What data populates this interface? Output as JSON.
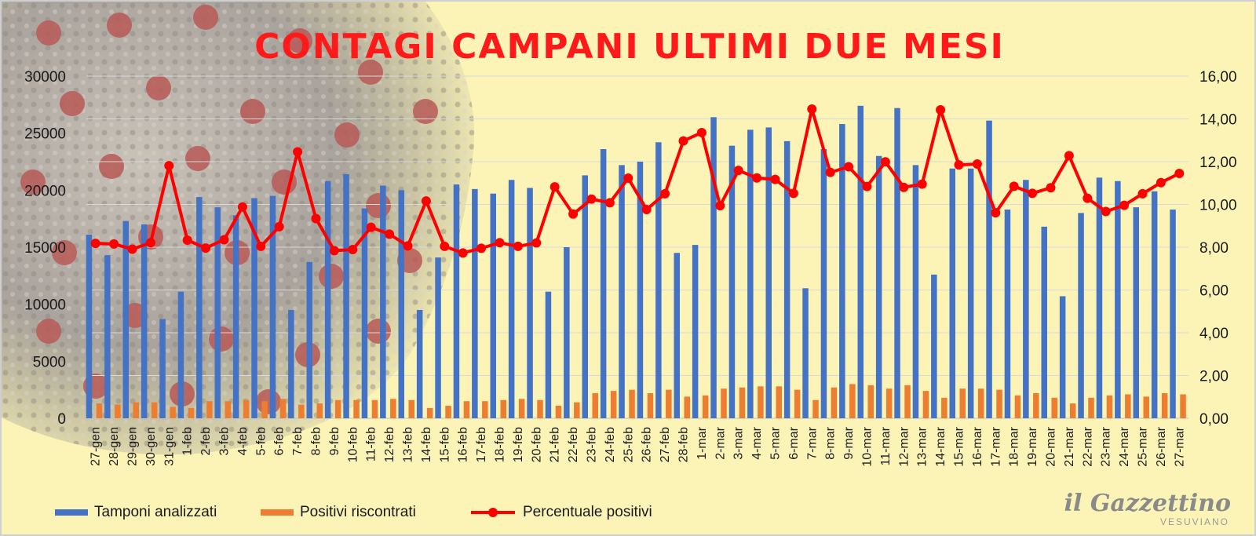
{
  "title": "CONTAGI CAMPANI ULTIMI DUE MESI",
  "legend": {
    "tamponi": "Tamponi analizzati",
    "positivi": "Positivi riscontrati",
    "percentuale": "Percentuale positivi"
  },
  "logo": {
    "name": "il Gazzettino",
    "sub": "VESUVIANO"
  },
  "colors": {
    "tamponi": "#4472c4",
    "positivi": "#ed7d31",
    "percentuale": "#ff0000",
    "title": "#ff1a1a",
    "background": "#fbf4b6"
  },
  "chart_data": {
    "type": "bar",
    "title": "CONTAGI CAMPANI ULTIMI DUE MESI",
    "categories": [
      "27-gen",
      "28-gen",
      "29-gen",
      "30-gen",
      "31-gen",
      "1-feb",
      "2-feb",
      "3-feb",
      "4-feb",
      "5-feb",
      "6-feb",
      "7-feb",
      "8-feb",
      "9-feb",
      "10-feb",
      "11-feb",
      "12-feb",
      "13-feb",
      "14-feb",
      "15-feb",
      "16-feb",
      "17-feb",
      "18-feb",
      "19-feb",
      "20-feb",
      "21-feb",
      "22-feb",
      "23-feb",
      "24-feb",
      "25-feb",
      "26-feb",
      "27-feb",
      "28-feb",
      "1-mar",
      "2-mar",
      "3-mar",
      "4-mar",
      "5-mar",
      "6-mar",
      "7-mar",
      "8-mar",
      "9-mar",
      "10-mar",
      "11-mar",
      "12-mar",
      "13-mar",
      "14-mar",
      "15-mar",
      "16-mar",
      "17-mar",
      "18-mar",
      "19-mar",
      "20-mar",
      "21-mar",
      "22-mar",
      "23-mar",
      "24-mar",
      "25-mar",
      "26-mar",
      "27-mar"
    ],
    "series": [
      {
        "name": "Tamponi analizzati",
        "type": "bar",
        "axis": "left",
        "values": [
          16100,
          14300,
          17300,
          17000,
          8700,
          11100,
          19400,
          18500,
          17800,
          19300,
          19500,
          9500,
          13700,
          20800,
          21400,
          18400,
          20400,
          20000,
          9500,
          14100,
          20500,
          20100,
          19700,
          20900,
          20200,
          11100,
          15000,
          21300,
          23600,
          22200,
          22500,
          24200,
          14500,
          15200,
          26400,
          23900,
          25300,
          25500,
          24300,
          11400,
          23600,
          25800,
          27400,
          23000,
          27200,
          22200,
          12600,
          21900,
          21900,
          26100,
          18300,
          20900,
          16800,
          10700,
          18000,
          21100,
          20800,
          18500,
          19900,
          18300
        ]
      },
      {
        "name": "Positivi riscontrati",
        "type": "bar",
        "axis": "left",
        "values": [
          1300,
          1200,
          1400,
          1400,
          1000,
          900,
          1500,
          1500,
          1600,
          1500,
          1700,
          1200,
          1300,
          1600,
          1600,
          1600,
          1700,
          1600,
          900,
          1100,
          1500,
          1500,
          1600,
          1700,
          1600,
          1100,
          1400,
          2200,
          2400,
          2500,
          2200,
          2500,
          1900,
          2000,
          2600,
          2700,
          2800,
          2800,
          2500,
          1600,
          2700,
          3000,
          2900,
          2600,
          2900,
          2400,
          1800,
          2600,
          2600,
          2500,
          2000,
          2200,
          1800,
          1300,
          1800,
          2000,
          2100,
          1900,
          2200,
          2100
        ]
      },
      {
        "name": "Percentuale positivi",
        "type": "line",
        "axis": "right",
        "values": [
          8.18,
          8.15,
          7.91,
          8.21,
          11.81,
          8.33,
          7.96,
          8.35,
          9.88,
          8.04,
          8.96,
          12.46,
          9.34,
          7.84,
          7.89,
          8.93,
          8.61,
          8.06,
          10.16,
          8.04,
          7.73,
          7.95,
          8.21,
          8.04,
          8.2,
          10.82,
          9.55,
          10.25,
          10.08,
          11.23,
          9.76,
          10.5,
          12.97,
          13.36,
          9.94,
          11.59,
          11.24,
          11.17,
          10.52,
          14.46,
          11.5,
          11.76,
          10.84,
          11.99,
          10.8,
          10.95,
          14.42,
          11.85,
          11.89,
          9.61,
          10.85,
          10.52,
          10.78,
          12.28,
          10.29,
          9.67,
          9.96,
          10.5,
          11.02,
          11.45
        ]
      }
    ],
    "y_left": {
      "min": 0,
      "max": 30000,
      "ticks": [
        "0",
        "5000",
        "10000",
        "15000",
        "20000",
        "25000",
        "30000"
      ]
    },
    "y_right": {
      "min": 0,
      "max": 16,
      "ticks": [
        "0,00",
        "2,00",
        "4,00",
        "6,00",
        "8,00",
        "10,00",
        "12,00",
        "14,00",
        "16,00"
      ]
    },
    "grid": true,
    "legend_position": "bottom"
  }
}
